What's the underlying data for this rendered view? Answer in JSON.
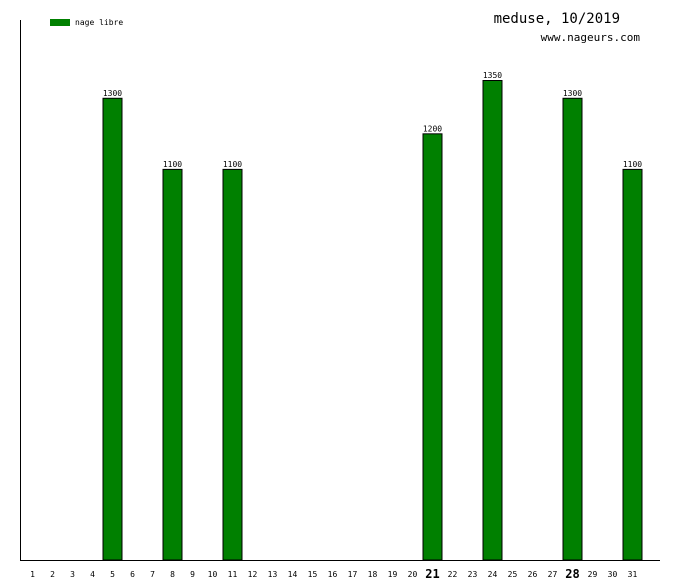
{
  "chart_data": {
    "type": "bar",
    "title": "meduse, 10/2019",
    "subtitle": "www.nageurs.com",
    "legend": [
      {
        "name": "nage libre",
        "color": "#008000"
      }
    ],
    "legend_position": "top-left",
    "categories": [
      "1",
      "2",
      "3",
      "4",
      "5",
      "6",
      "7",
      "8",
      "9",
      "10",
      "11",
      "12",
      "13",
      "14",
      "15",
      "16",
      "17",
      "18",
      "19",
      "20",
      "21",
      "22",
      "23",
      "24",
      "25",
      "26",
      "27",
      "28",
      "29",
      "30",
      "31"
    ],
    "emphasized_categories": [
      "21",
      "28"
    ],
    "series": [
      {
        "name": "nage libre",
        "color": "#008000",
        "values": [
          null,
          null,
          null,
          null,
          1300,
          null,
          null,
          1100,
          null,
          null,
          1100,
          null,
          null,
          null,
          null,
          null,
          null,
          null,
          null,
          null,
          1200,
          null,
          null,
          1350,
          null,
          null,
          null,
          1300,
          null,
          null,
          1100
        ]
      }
    ],
    "ylim": [
      0,
      1350
    ],
    "grid": false
  }
}
